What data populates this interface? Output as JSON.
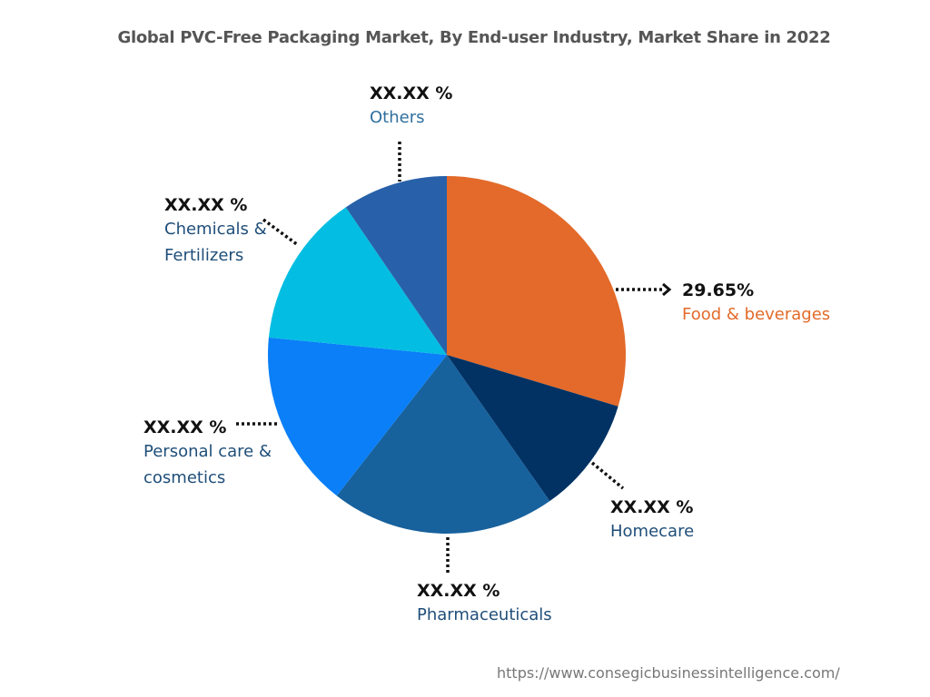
{
  "chart_data": {
    "type": "pie",
    "title": "Global PVC-Free Packaging Market, By End-user Industry, Market Share in 2022",
    "start_angle": "12 o'clock",
    "direction": "clockwise",
    "slices": [
      {
        "label": "Food & beverages",
        "value": 29.65,
        "value_label": "29.65%",
        "color": "#e36a2a",
        "label_color": "#e36a2a"
      },
      {
        "label": "Homecare",
        "value": 10.6,
        "value_label": "XX.XX %",
        "color": "#023263",
        "label_color": "#1f4e79"
      },
      {
        "label": "Pharmaceuticals",
        "value": 20.3,
        "value_label": "XX.XX %",
        "color": "#17619d",
        "label_color": "#1f4e79"
      },
      {
        "label": "Personal care & cosmetics",
        "value": 16.0,
        "value_label": "XX.XX %",
        "color": "#0a7ff8",
        "label_color": "#1f4e79"
      },
      {
        "label": "Chemicals & Fertilizers",
        "value": 13.9,
        "value_label": "XX.XX %",
        "color": "#03bee2",
        "label_color": "#1f4e79"
      },
      {
        "label": "Others",
        "value": 9.55,
        "value_label": "XX.XX %",
        "color": "#2861a9",
        "label_color": "#2f6f9f"
      }
    ]
  },
  "labels": {
    "food": {
      "value": "29.65%",
      "name": "Food & beverages"
    },
    "homecare": {
      "value": "XX.XX %",
      "name": "Homecare"
    },
    "pharma": {
      "value": "XX.XX %",
      "name": "Pharmaceuticals"
    },
    "personal": {
      "value": "XX.XX %",
      "name": "Personal care &\ncosmetics"
    },
    "chemicals": {
      "value": "XX.XX %",
      "name": "Chemicals &\nFertilizers"
    },
    "others": {
      "value": "XX.XX %",
      "name": "Others"
    }
  },
  "source": "https://www.consegicbusinessintelligence.com/"
}
